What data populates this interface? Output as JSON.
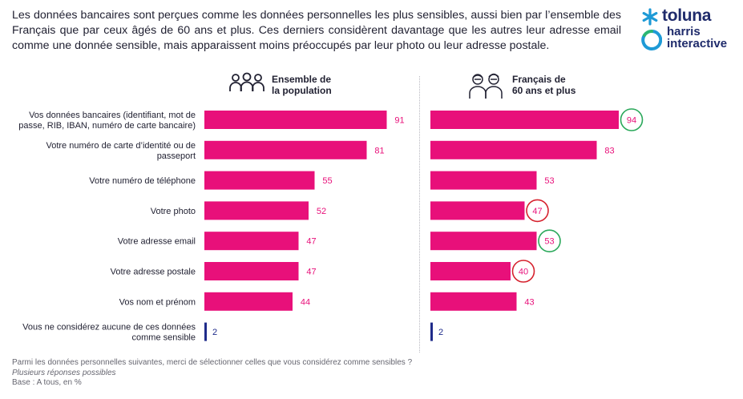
{
  "intro_text": "Les données bancaires sont perçues comme les données personnelles les plus sensibles, aussi bien par l’ensemble des Français que par ceux âgés de 60 ans et plus. Ces derniers considèrent davantage que les autres leur adresse email comme une donnée sensible, mais apparaissent moins préoccupés par leur photo ou leur adresse postale.",
  "logo": {
    "brand": "toluna",
    "line1": "harris",
    "line2": "interactive"
  },
  "colors": {
    "bar": "#e8107a",
    "base_bar": "#1f2b8a",
    "higher_circle": "#2aa85a",
    "lower_circle": "#d6222e"
  },
  "panels": [
    {
      "header_line1": "Ensemble de",
      "header_line2": "la population",
      "icon": "group-people-icon"
    },
    {
      "header_line1": "Français de",
      "header_line2": "60 ans et plus",
      "icon": "senior-couple-icon"
    }
  ],
  "chart_data": {
    "type": "bar",
    "orientation": "horizontal",
    "categories": [
      [
        "Vos données bancaires (identifiant, mot de",
        "passe, RIB, IBAN, numéro de carte bancaire)"
      ],
      [
        "Votre numéro de carte d’identité ou de",
        "passeport"
      ],
      [
        "Votre numéro de téléphone"
      ],
      [
        "Votre photo"
      ],
      [
        "Votre adresse email"
      ],
      [
        "Votre adresse postale"
      ],
      [
        "Vos nom et prénom"
      ],
      [
        "Vous ne considérez aucune de ces données",
        "comme sensible"
      ]
    ],
    "series": [
      {
        "name": "Ensemble de la population",
        "values": [
          91,
          81,
          55,
          52,
          47,
          47,
          44,
          2
        ],
        "marks": [
          "",
          "",
          "",
          "",
          "",
          "",
          "",
          ""
        ]
      },
      {
        "name": "Français de 60 ans et plus",
        "values": [
          94,
          83,
          53,
          47,
          53,
          40,
          43,
          2
        ],
        "marks": [
          "higher",
          "",
          "",
          "lower",
          "higher",
          "lower",
          "",
          ""
        ]
      }
    ],
    "xlim": [
      0,
      100
    ],
    "unit": "%"
  },
  "footer": {
    "question": "Parmi les données personnelles suivantes, merci de sélectionner celles que vous considérez comme sensibles ?",
    "note": "Plusieurs réponses possibles",
    "base": "Base : A tous, en %"
  }
}
